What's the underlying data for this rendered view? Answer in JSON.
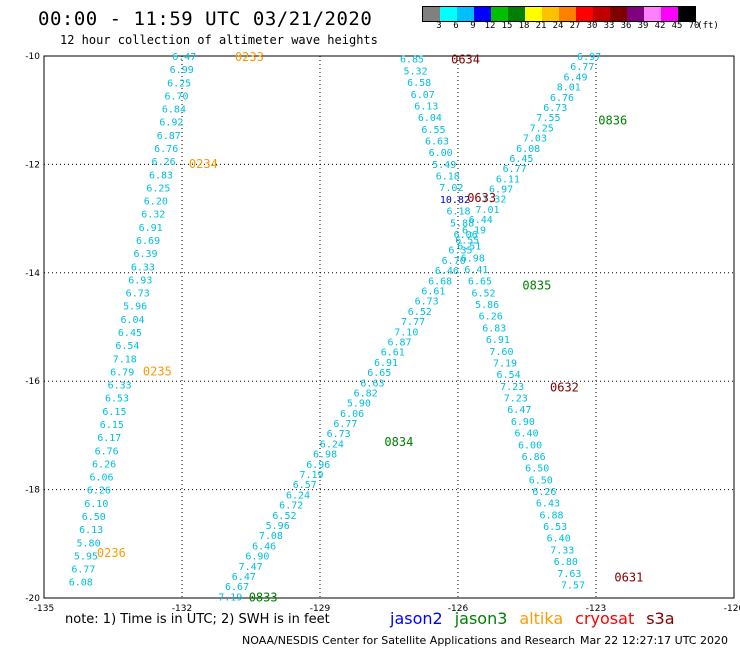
{
  "header": {
    "title": "00:00 - 11:59 UTC 03/21/2020",
    "subtitle": "12 hour collection of altimeter wave heights"
  },
  "color_legend": {
    "colors": [
      "#808080",
      "#00ffff",
      "#00bfff",
      "#0000ff",
      "#00c000",
      "#008000",
      "#ffff00",
      "#ffc000",
      "#ff8000",
      "#ff0000",
      "#c00000",
      "#800000",
      "#800080",
      "#ff80ff",
      "#ff00ff",
      "#000000"
    ],
    "labels": [
      "3",
      "6",
      "9",
      "12",
      "15",
      "18",
      "21",
      "24",
      "27",
      "30",
      "33",
      "36",
      "39",
      "42",
      "45",
      "70"
    ],
    "unit": "(ft)"
  },
  "map": {
    "lon_range": [
      -135,
      -120
    ],
    "lat_range": [
      -20,
      -10
    ],
    "lon_ticks": [
      "-135",
      "-132",
      "-129",
      "-126",
      "-123",
      "-120"
    ],
    "lat_ticks": [
      "-10",
      "-12",
      "-14",
      "-16",
      "-18",
      "-20"
    ],
    "tracks": [
      {
        "satellite": "altika",
        "color": "#00bfdf",
        "pass_labels": [
          {
            "text": "0233",
            "color": "#ff9900",
            "lon": -130.85,
            "lat": -10.0
          },
          {
            "text": "0234",
            "color": "#ff9900",
            "lon": -131.85,
            "lat": -11.97
          },
          {
            "text": "0235",
            "color": "#ff9900",
            "lon": -132.85,
            "lat": -15.8
          },
          {
            "text": "0236",
            "color": "#ff9900",
            "lon": -133.85,
            "lat": -19.15
          }
        ],
        "start": {
          "lon": -131.95,
          "lat": -10.0
        },
        "end": {
          "lon": -134.2,
          "lat": -19.7
        },
        "values": [
          "6.47",
          "6.99",
          "6.25",
          "6.70",
          "6.84",
          "6.92",
          "6.87",
          "6.76",
          "6.26",
          "6.83",
          "6.25",
          "6.20",
          "6.32",
          "6.91",
          "6.69",
          "6.39",
          "6.33",
          "6.93",
          "6.73",
          "5.96",
          "6.04",
          "6.45",
          "6.54",
          "7.18",
          "6.79",
          "6.33",
          "6.53",
          "6.15",
          "6.15",
          "6.17",
          "6.76",
          "6.26",
          "6.06",
          "6.26",
          "6.10",
          "6.50",
          "6.13",
          "5.80",
          "5.95",
          "6.77",
          "6.08"
        ]
      },
      {
        "satellite": "jason3",
        "color": "#00bfdf",
        "pass_labels": [
          {
            "text": "0836",
            "color": "#008000",
            "lon": -122.95,
            "lat": -11.17
          },
          {
            "text": "0835",
            "color": "#008000",
            "lon": -124.6,
            "lat": -14.22
          },
          {
            "text": "0834",
            "color": "#008000",
            "lon": -127.6,
            "lat": -17.1
          },
          {
            "text": "0833",
            "color": "#008000",
            "lon": -130.55,
            "lat": -19.97
          }
        ],
        "start": {
          "lon": -123.15,
          "lat": -10.0
        },
        "end": {
          "lon": -130.95,
          "lat": -19.97
        },
        "values": [
          "6.97",
          "6.77",
          "6.49",
          "8.01",
          "6.76",
          "6.73",
          "7.55",
          "7.25",
          "7.03",
          "6.08",
          "6.45",
          "6.77",
          "6.11",
          "6.97",
          "7.32",
          "7.01",
          "6.44",
          "6.19",
          "6.55",
          "6.35",
          "6.70",
          "6.46",
          "6.68",
          "6.61",
          "6.73",
          "6.52",
          "7.77",
          "7.10",
          "6.87",
          "6.61",
          "6.91",
          "6.65",
          "6.63",
          "6.82",
          "5.90",
          "6.06",
          "6.77",
          "6.73",
          "6.24",
          "6.98",
          "6.96",
          "7.19",
          "6.57",
          "6.24",
          "6.72",
          "6.52",
          "5.96",
          "7.08",
          "6.46",
          "6.90",
          "7.47",
          "6.47",
          "6.67",
          "7.19"
        ]
      },
      {
        "satellite": "s3a",
        "color": "#00bfdf",
        "pass_labels": [
          {
            "text": "0634",
            "color": "#800000",
            "lon": -126.15,
            "lat": -10.05
          },
          {
            "text": "0633",
            "color": "#800000",
            "lon": -125.8,
            "lat": -12.6
          },
          {
            "text": "0632",
            "color": "#800000",
            "lon": -124.0,
            "lat": -16.1
          },
          {
            "text": "0631",
            "color": "#800000",
            "lon": -122.6,
            "lat": -19.6
          }
        ],
        "start": {
          "lon": -127.0,
          "lat": -10.05
        },
        "end": {
          "lon": -123.5,
          "lat": -19.75
        },
        "values": [
          "6.85",
          "5.32",
          "6.58",
          "6.07",
          "6.13",
          "6.04",
          "6.55",
          "6.63",
          "6.00",
          "5.49",
          "6.18",
          "7.02",
          "10.82",
          "6.18",
          "5.88",
          "6.06",
          "6.51",
          "6.98",
          "6.41",
          "6.65",
          "6.52",
          "5.86",
          "6.26",
          "6.83",
          "6.91",
          "7.60",
          "7.19",
          "6.54",
          "7.23",
          "7.23",
          "6.47",
          "6.90",
          "6.40",
          "6.00",
          "6.86",
          "6.50",
          "6.50",
          "6.26",
          "6.43",
          "6.88",
          "6.53",
          "6.40",
          "7.33",
          "6.80",
          "7.63",
          "7.57"
        ]
      }
    ]
  },
  "footer": {
    "note": "note: 1) Time is in UTC; 2) SWH is in feet",
    "satellites": [
      {
        "name": "jason2",
        "color": "#0000ff"
      },
      {
        "name": "jason3",
        "color": "#008000"
      },
      {
        "name": "altika",
        "color": "#ff9900"
      },
      {
        "name": "cryosat",
        "color": "#ff0000"
      },
      {
        "name": "s3a",
        "color": "#800000"
      }
    ],
    "credit": "NOAA/NESDIS Center for Satellite Applications and Research",
    "timestamp": "Mar 22 12:27:17 UTC 2020"
  }
}
